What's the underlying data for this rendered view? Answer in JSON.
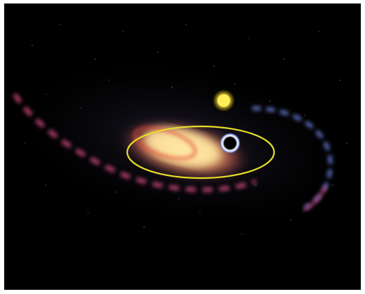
{
  "image": {
    "subject": "galaxy-with-star-and-black-hole",
    "colors": {
      "background": "#000000",
      "frame_border": "#ffffff",
      "orbit": "#e9dc2a",
      "star": "#ffe94a",
      "core_glow": "#ffd98a",
      "pink_arm": "#d24a80",
      "blue_arm": "#6a7fd9",
      "black_hole": "#000000",
      "black_hole_ring": "#ffffff"
    }
  }
}
